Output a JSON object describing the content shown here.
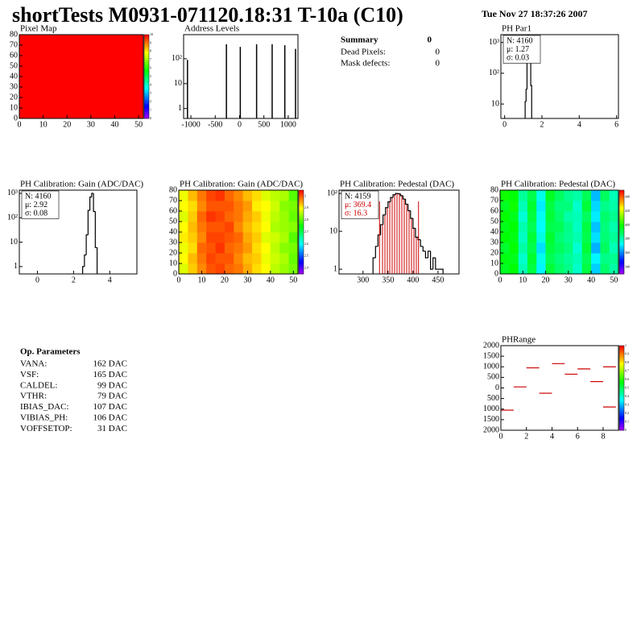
{
  "header": {
    "title": "shortTests M0931-071120.18:31 T-10a (C10)",
    "date": "Tue Nov 27 18:37:26 2007"
  },
  "summary": {
    "title": "Summary",
    "total": "0",
    "rows": [
      [
        "Dead Pixels:",
        "0"
      ],
      [
        "Mask defects:",
        "0"
      ]
    ]
  },
  "parameters": {
    "title": "Op. Parameters",
    "rows": [
      [
        "VANA:",
        "162 DAC"
      ],
      [
        "VSF:",
        "165 DAC"
      ],
      [
        "CALDEL:",
        "99 DAC"
      ],
      [
        "VTHR:",
        "79 DAC"
      ],
      [
        "IBIAS_DAC:",
        "107 DAC"
      ],
      [
        "VIBIAS_PH:",
        "106 DAC"
      ],
      [
        "VOFFSETOP:",
        "31 DAC"
      ]
    ]
  },
  "chart_data": [
    {
      "type": "heatmap",
      "title": "Pixel Map",
      "xlim": [
        0,
        52
      ],
      "ylim": [
        0,
        80
      ],
      "xticks": [
        0,
        10,
        20,
        30,
        40,
        50
      ],
      "yticks": [
        0,
        10,
        20,
        30,
        40,
        50,
        60,
        70,
        80
      ],
      "z": [
        [
          10
        ]
      ],
      "zlim": [
        0,
        10
      ],
      "zticks": [
        0,
        1,
        2,
        3,
        4,
        5,
        6,
        7,
        8,
        9,
        10
      ]
    },
    {
      "type": "spikes",
      "title": "Address Levels",
      "log_y": true,
      "xlim": [
        -1150,
        1200
      ],
      "ylim": [
        0.4,
        930
      ],
      "xticks": [
        -1000,
        -500,
        0,
        500,
        1000
      ],
      "yticks": [
        1,
        10,
        {
          "value": 100,
          "label": "10²"
        }
      ],
      "x": [
        -1070,
        -270,
        15,
        350,
        670,
        930,
        1150
      ],
      "values": [
        90,
        380,
        300,
        380,
        380,
        350,
        250
      ]
    },
    {
      "type": "histogram",
      "title": "PH Par1",
      "log_y": true,
      "xlim": [
        -0.2,
        6.1
      ],
      "ylim": [
        3.4,
        1800
      ],
      "xticks": [
        0,
        2,
        4,
        6
      ],
      "yticks": [
        10,
        {
          "value": 100,
          "label": "10²"
        },
        {
          "value": 1000,
          "label": "10³"
        }
      ],
      "bins": [
        1.1,
        1.15,
        1.2,
        1.25,
        1.3,
        1.35,
        1.4,
        1.45
      ],
      "values": [
        12,
        30,
        400,
        1700,
        1500,
        450,
        40
      ],
      "stats": [
        "N: 4160",
        "μ: 1.27",
        "σ: 0.03"
      ]
    },
    {
      "type": "histogram",
      "title": "PH Calibration: Gain (ADC/DAC)",
      "log_y": true,
      "xlim": [
        -1,
        5.5
      ],
      "ylim": [
        0.5,
        1350
      ],
      "xticks": [
        0,
        2,
        4
      ],
      "yticks": [
        1,
        10,
        {
          "value": 100,
          "label": "10²"
        },
        {
          "value": 1000,
          "label": "10³"
        }
      ],
      "bins": [
        2.5,
        2.6,
        2.7,
        2.8,
        2.9,
        3.0,
        3.1,
        3.2,
        3.3
      ],
      "values": [
        1,
        3,
        20,
        200,
        700,
        1000,
        180,
        6
      ],
      "stats": [
        "N: 4160",
        "μ: 2.92",
        "σ: 0.08"
      ]
    },
    {
      "type": "heatmap",
      "title": "PH Calibration: Gain (ADC/DAC)",
      "xlim": [
        0,
        52
      ],
      "ylim": [
        0,
        80
      ],
      "xticks": [
        0,
        10,
        20,
        30,
        40,
        50
      ],
      "yticks": [
        0,
        10,
        20,
        30,
        40,
        50,
        60,
        70,
        80
      ],
      "z": [
        [
          2.88,
          2.93,
          2.97,
          3.0,
          3.01,
          2.99,
          2.98,
          2.95,
          2.92,
          2.9,
          2.86,
          2.84,
          2.82
        ],
        [
          2.9,
          2.94,
          2.98,
          3.01,
          3.0,
          3.0,
          2.97,
          2.94,
          2.93,
          2.89,
          2.87,
          2.85,
          2.81
        ],
        [
          2.89,
          2.92,
          2.99,
          3.0,
          3.02,
          2.99,
          2.98,
          2.96,
          2.92,
          2.9,
          2.86,
          2.83,
          2.82
        ],
        [
          2.91,
          2.93,
          2.97,
          3.01,
          3.01,
          3.0,
          2.99,
          2.95,
          2.93,
          2.88,
          2.87,
          2.85,
          2.8
        ],
        [
          2.9,
          2.94,
          2.98,
          3.0,
          3.0,
          3.01,
          2.97,
          2.94,
          2.92,
          2.9,
          2.85,
          2.84,
          2.83
        ],
        [
          2.88,
          2.93,
          2.99,
          3.02,
          3.01,
          2.99,
          2.98,
          2.95,
          2.93,
          2.89,
          2.86,
          2.84,
          2.81
        ],
        [
          2.9,
          2.92,
          2.97,
          3.0,
          3.0,
          3.0,
          2.98,
          2.96,
          2.91,
          2.9,
          2.87,
          2.83,
          2.82
        ],
        [
          2.89,
          2.94,
          2.98,
          3.01,
          3.02,
          2.99,
          2.97,
          2.94,
          2.92,
          2.88,
          2.86,
          2.85,
          2.8
        ]
      ],
      "zlim": [
        2.35,
        3.05
      ],
      "zticks": [
        2.4,
        2.5,
        2.6,
        2.7,
        2.8,
        2.9,
        3
      ]
    },
    {
      "type": "histogram",
      "title": "PH Calibration: Pedestal (DAC)",
      "log_y": true,
      "xlim": [
        252,
        492
      ],
      "ylim": [
        0.75,
        122
      ],
      "xticks": [
        300,
        350,
        400,
        450
      ],
      "yticks": [
        1,
        10,
        {
          "value": 100,
          "label": "10²"
        }
      ],
      "bins": [
        320,
        325,
        330,
        335,
        340,
        345,
        350,
        355,
        360,
        365,
        370,
        375,
        380,
        385,
        390,
        395,
        400,
        405,
        410,
        415,
        420,
        425,
        430,
        435,
        440,
        445,
        450,
        455,
        460
      ],
      "values": [
        2,
        4,
        8,
        15,
        27,
        42,
        60,
        78,
        92,
        100,
        98,
        87,
        71,
        52,
        35,
        22,
        12,
        7,
        6,
        4,
        3,
        2,
        3,
        1,
        2,
        1,
        1,
        1
      ],
      "cut_lines": [
        333,
        411
      ],
      "stats": [
        "N: 4159",
        "μ: 369.4",
        "σ: 16.3"
      ]
    },
    {
      "type": "heatmap",
      "title": "PH Calibration: Pedestal (DAC)",
      "xlim": [
        0,
        52
      ],
      "ylim": [
        0,
        80
      ],
      "xticks": [
        0,
        10,
        20,
        30,
        40,
        50
      ],
      "yticks": [
        0,
        10,
        20,
        30,
        40,
        50,
        60,
        70,
        80
      ],
      "z": [
        [
          395,
          398,
          380,
          392,
          372,
          393,
          388,
          385,
          378,
          392,
          368,
          388,
          382
        ],
        [
          397,
          396,
          378,
          394,
          375,
          390,
          386,
          383,
          380,
          390,
          372,
          385,
          384
        ],
        [
          394,
          399,
          382,
          391,
          370,
          392,
          389,
          386,
          377,
          393,
          365,
          389,
          380
        ],
        [
          398,
          397,
          379,
          393,
          376,
          394,
          387,
          384,
          381,
          391,
          370,
          387,
          383
        ],
        [
          396,
          398,
          381,
          390,
          373,
          391,
          390,
          385,
          379,
          392,
          367,
          386,
          381
        ],
        [
          399,
          396,
          377,
          392,
          374,
          393,
          388,
          382,
          380,
          389,
          371,
          388,
          384
        ],
        [
          395,
          400,
          380,
          394,
          371,
          392,
          386,
          386,
          378,
          393,
          369,
          385,
          382
        ],
        [
          400,
          398,
          383,
          391,
          375,
          395,
          389,
          384,
          382,
          390,
          366,
          389,
          380
        ]
      ],
      "zlim": [
        330,
        450
      ],
      "zticks": [
        340,
        360,
        380,
        400,
        420,
        440
      ]
    },
    {
      "type": "segments",
      "title": "PHRange",
      "xlim": [
        0,
        9.2
      ],
      "ylim": [
        -2000,
        2000
      ],
      "xticks": [
        0,
        2,
        4,
        6,
        8
      ],
      "yticks": [
        {
          "value": -2000,
          "label": "2000"
        },
        {
          "value": -1500,
          "label": "1500"
        },
        {
          "value": -1000,
          "label": "1000"
        },
        {
          "value": -500,
          "label": "500"
        },
        0,
        500,
        1000,
        1500,
        2000
      ],
      "x": [
        0,
        1,
        2,
        3,
        4,
        5,
        6,
        7,
        8,
        8
      ],
      "values": [
        -1050,
        50,
        950,
        -250,
        1150,
        650,
        900,
        300,
        1000,
        -900
      ],
      "color": "#cc0000",
      "zlim": [
        0,
        1
      ],
      "zticks": [
        0,
        0.1,
        0.2,
        0.3,
        0.4,
        0.5,
        0.6,
        0.7,
        0.8,
        0.9,
        1
      ]
    }
  ]
}
